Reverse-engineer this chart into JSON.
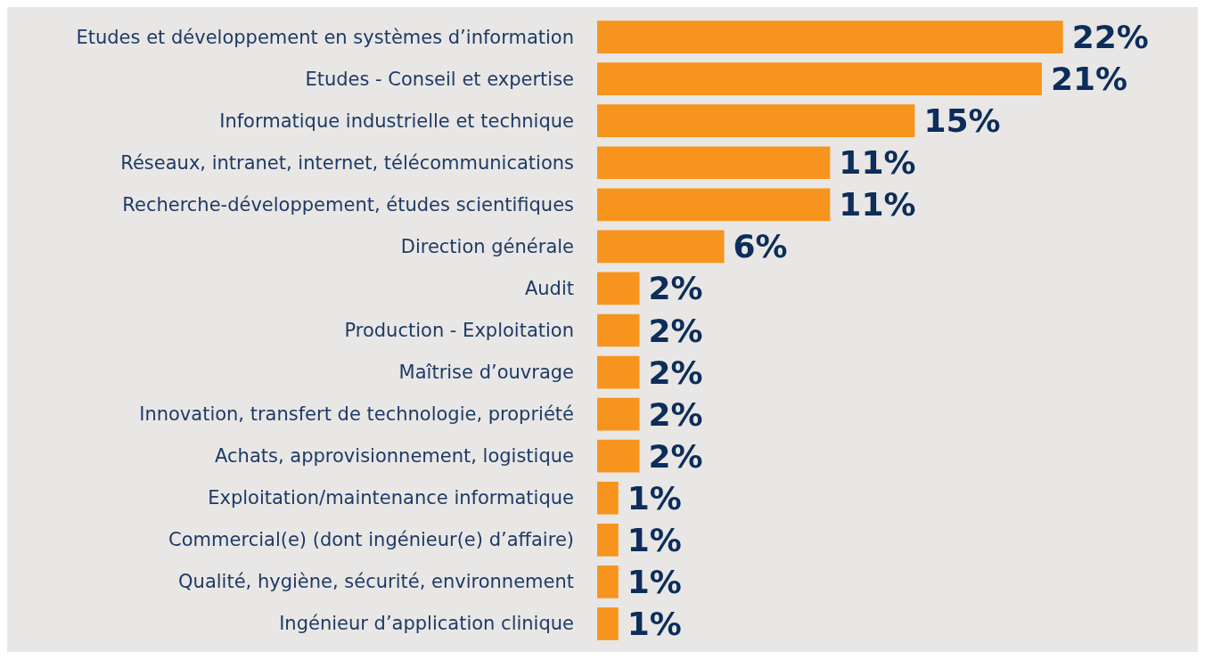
{
  "chart_data": {
    "type": "bar",
    "orientation": "horizontal",
    "categories": [
      "Etudes et développement en systèmes d’information",
      "Etudes - Conseil et expertise",
      "Informatique industrielle et technique",
      "Réseaux, intranet, internet, télécommunications",
      "Recherche-développement, études scientifiques",
      "Direction générale",
      "Audit",
      "Production - Exploitation",
      "Maîtrise d’ouvrage",
      "Innovation, transfert de technologie, propriété",
      "Achats, approvisionnement, logistique",
      "Exploitation/maintenance informatique",
      "Commercial(e) (dont ingénieur(e) d’affaire)",
      "Qualité, hygiène, sécurité, environnement",
      "Ingénieur d’application clinique"
    ],
    "values": [
      22,
      21,
      15,
      11,
      11,
      6,
      2,
      2,
      2,
      2,
      2,
      1,
      1,
      1,
      1
    ],
    "value_labels": [
      "22%",
      "21%",
      "15%",
      "11%",
      "11%",
      "6%",
      "2%",
      "2%",
      "2%",
      "2%",
      "2%",
      "1%",
      "1%",
      "1%",
      "1%"
    ],
    "color": "#f7941d",
    "grid": false
  }
}
